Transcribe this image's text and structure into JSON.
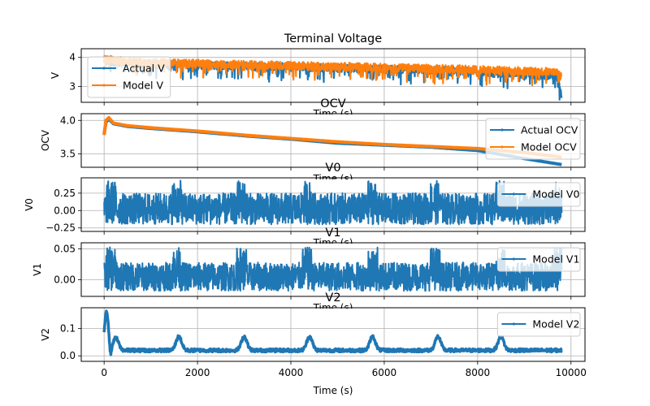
{
  "chart_data": [
    {
      "type": "line",
      "title": "Terminal Voltage",
      "xlabel": "Time (s)",
      "ylabel": "V",
      "xlim": [
        -490,
        10300
      ],
      "ylim": [
        2.45,
        4.3
      ],
      "yticks": [
        3,
        4
      ],
      "ytick_labels": [
        "3",
        "4"
      ],
      "grid": true,
      "legend_loc": "lower-left",
      "series": [
        {
          "name": "Actual V",
          "color": "#1f77b4",
          "kind": "noisy",
          "x_end": 9800,
          "base": [
            [
              0,
              3.9
            ],
            [
              500,
              3.8
            ],
            [
              1600,
              3.75
            ],
            [
              3000,
              3.7
            ],
            [
              4500,
              3.65
            ],
            [
              6000,
              3.6
            ],
            [
              7500,
              3.55
            ],
            [
              8400,
              3.45
            ],
            [
              9700,
              3.35
            ],
            [
              9800,
              2.6
            ]
          ],
          "amplitude": 0.35
        },
        {
          "name": "Model V",
          "color": "#ff7f0e",
          "kind": "noisy",
          "x_end": 9800,
          "base": [
            [
              0,
              3.95
            ],
            [
              500,
              3.85
            ],
            [
              1600,
              3.8
            ],
            [
              3000,
              3.75
            ],
            [
              4500,
              3.7
            ],
            [
              6000,
              3.65
            ],
            [
              7500,
              3.6
            ],
            [
              8400,
              3.55
            ],
            [
              9700,
              3.5
            ],
            [
              9800,
              3.3
            ]
          ],
          "amplitude": 0.35
        }
      ]
    },
    {
      "type": "line",
      "title": "OCV",
      "xlabel": "Time (s)",
      "ylabel": "OCV",
      "xlim": [
        -490,
        10300
      ],
      "ylim": [
        3.3,
        4.1
      ],
      "yticks": [
        3.5,
        4.0
      ],
      "ytick_labels": [
        "3.5",
        "4.0"
      ],
      "grid": true,
      "legend_loc": "upper-right",
      "series": [
        {
          "name": "Actual OCV",
          "color": "#1f77b4",
          "kind": "smooth",
          "points": [
            [
              0,
              3.8
            ],
            [
              40,
              3.97
            ],
            [
              100,
              4.02
            ],
            [
              200,
              3.95
            ],
            [
              500,
              3.91
            ],
            [
              1000,
              3.88
            ],
            [
              2000,
              3.83
            ],
            [
              3000,
              3.77
            ],
            [
              4000,
              3.72
            ],
            [
              5000,
              3.66
            ],
            [
              6000,
              3.63
            ],
            [
              7000,
              3.6
            ],
            [
              8000,
              3.55
            ],
            [
              9000,
              3.43
            ],
            [
              9800,
              3.34
            ]
          ]
        },
        {
          "name": "Model OCV",
          "color": "#ff7f0e",
          "kind": "smooth",
          "points": [
            [
              0,
              3.78
            ],
            [
              40,
              4.0
            ],
            [
              100,
              4.04
            ],
            [
              200,
              3.96
            ],
            [
              500,
              3.92
            ],
            [
              1000,
              3.89
            ],
            [
              2000,
              3.84
            ],
            [
              3000,
              3.78
            ],
            [
              4000,
              3.73
            ],
            [
              5000,
              3.68
            ],
            [
              6000,
              3.64
            ],
            [
              7000,
              3.61
            ],
            [
              8000,
              3.58
            ],
            [
              9000,
              3.52
            ],
            [
              9800,
              3.45
            ]
          ]
        }
      ]
    },
    {
      "type": "line",
      "title": "V0",
      "xlabel": "Time (s)",
      "ylabel": "V0",
      "xlim": [
        -490,
        10300
      ],
      "ylim": [
        -0.3,
        0.47
      ],
      "yticks": [
        -0.25,
        0.0,
        0.25
      ],
      "ytick_labels": [
        "−0.25",
        "0.00",
        "0.25"
      ],
      "grid": true,
      "legend_loc": "upper-right",
      "series": [
        {
          "name": "Model V0",
          "color": "#1f77b4",
          "kind": "noise",
          "x_end": 9800,
          "center": 0.05,
          "low": -0.2,
          "high": 0.25,
          "peak": 0.43,
          "bursts": [
            150,
            1550,
            2950,
            4350,
            5750,
            7100,
            8500,
            9750
          ]
        }
      ]
    },
    {
      "type": "line",
      "title": "V1",
      "xlabel": "Time (s)",
      "ylabel": "V1",
      "xlim": [
        -490,
        10300
      ],
      "ylim": [
        -0.027,
        0.06
      ],
      "yticks": [
        0.0,
        0.05
      ],
      "ytick_labels": [
        "0.00",
        "0.05"
      ],
      "grid": true,
      "legend_loc": "upper-right",
      "series": [
        {
          "name": "Model V1",
          "color": "#1f77b4",
          "kind": "noise",
          "x_end": 9800,
          "center": 0.005,
          "low": -0.018,
          "high": 0.028,
          "peak": 0.053,
          "bursts": [
            150,
            1550,
            2950,
            4350,
            5750,
            7100,
            8500,
            9750
          ]
        }
      ]
    },
    {
      "type": "line",
      "title": "V2",
      "xlabel": "Time (s)",
      "ylabel": "V2",
      "xlim": [
        -490,
        10300
      ],
      "ylim": [
        -0.02,
        0.175
      ],
      "yticks": [
        0.0,
        0.1
      ],
      "ytick_labels": [
        "0.0",
        "0.1"
      ],
      "xticks": [
        0,
        2000,
        4000,
        6000,
        8000,
        10000
      ],
      "xtick_labels": [
        "0",
        "2000",
        "4000",
        "6000",
        "8000",
        "10000"
      ],
      "grid": true,
      "legend_loc": "upper-right",
      "series": [
        {
          "name": "Model V2",
          "color": "#1f77b4",
          "kind": "bumps",
          "x_end": 9800,
          "baseline": 0.02,
          "bumps": [
            [
              50,
              0.165
            ],
            [
              250,
              0.065
            ],
            [
              1600,
              0.07
            ],
            [
              3000,
              0.07
            ],
            [
              4400,
              0.07
            ],
            [
              5750,
              0.07
            ],
            [
              7150,
              0.07
            ],
            [
              8500,
              0.07
            ]
          ]
        }
      ]
    }
  ]
}
